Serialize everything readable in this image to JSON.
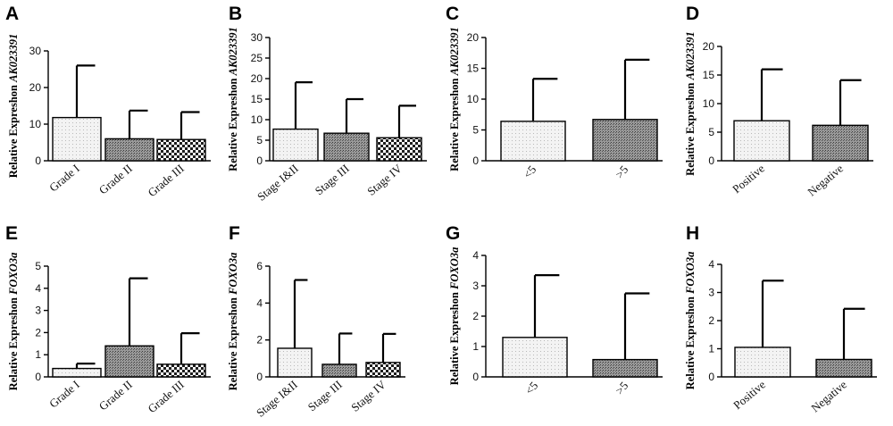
{
  "colors": {
    "axis": "#000000",
    "light_fill": "#f1f1f1",
    "dark_fill": "#8c8c8c",
    "checker_dark": "#222222"
  },
  "chart_data": [
    {
      "panel": "A",
      "type": "bar",
      "ylabel": "Relative Expreshon",
      "ylabel_gene": "AK023391",
      "categories": [
        "Grade I",
        "Grade II",
        "Grade III"
      ],
      "values": [
        11.8,
        6.0,
        5.8
      ],
      "errors": [
        26.0,
        13.7,
        13.3
      ],
      "fills": [
        "light",
        "dark",
        "checker"
      ],
      "yticks": [
        "0",
        "10",
        "20",
        "30"
      ],
      "ylim": [
        0,
        30
      ],
      "label_rotation": -40
    },
    {
      "panel": "B",
      "type": "bar",
      "ylabel": "Relative Expreshon",
      "ylabel_gene": "AK023391",
      "categories": [
        "Stage I&II",
        "Stage III",
        "Stage IV"
      ],
      "values": [
        7.7,
        6.7,
        5.6
      ],
      "errors": [
        19.1,
        15.0,
        13.4
      ],
      "fills": [
        "light",
        "dark",
        "checker"
      ],
      "yticks": [
        "0",
        "5",
        "10",
        "15",
        "20",
        "25",
        "30"
      ],
      "ylim": [
        0,
        30
      ],
      "label_rotation": -40
    },
    {
      "panel": "C",
      "type": "bar",
      "ylabel": "Relative Expreshon",
      "ylabel_gene": "AK023391",
      "categories": [
        "<5",
        ">5"
      ],
      "values": [
        6.4,
        6.7
      ],
      "errors": [
        13.3,
        16.4
      ],
      "fills": [
        "light",
        "dark"
      ],
      "yticks": [
        "0",
        "5",
        "10",
        "15",
        "20"
      ],
      "ylim": [
        0,
        20
      ],
      "label_rotation": -50
    },
    {
      "panel": "D",
      "type": "bar",
      "ylabel": "Relative Expreshon",
      "ylabel_gene": "AK023391",
      "categories": [
        "Positive",
        "Negative"
      ],
      "values": [
        7.0,
        6.2
      ],
      "errors": [
        16.0,
        14.1
      ],
      "fills": [
        "light",
        "dark"
      ],
      "yticks": [
        "0",
        "5",
        "10",
        "15",
        "20"
      ],
      "ylim": [
        0,
        20
      ],
      "label_rotation": -40
    },
    {
      "panel": "E",
      "type": "bar",
      "ylabel": "Relative Expreshon",
      "ylabel_gene": "FOXO3a",
      "categories": [
        "Grade I",
        "Grade II",
        "Grade III"
      ],
      "values": [
        0.38,
        1.4,
        0.57
      ],
      "errors": [
        0.6,
        4.45,
        1.97
      ],
      "fills": [
        "light",
        "dark",
        "checker"
      ],
      "yticks": [
        "0",
        "1",
        "2",
        "3",
        "4",
        "5"
      ],
      "ylim": [
        0,
        5
      ],
      "label_rotation": -40
    },
    {
      "panel": "F",
      "type": "bar",
      "ylabel": "Relative Expreshon",
      "ylabel_gene": "FOXO3a",
      "categories": [
        "Stage I&II",
        "Stage III",
        "Stage IV"
      ],
      "values": [
        1.55,
        0.68,
        0.78
      ],
      "errors": [
        5.25,
        2.35,
        2.33
      ],
      "fills": [
        "light",
        "dark",
        "checker"
      ],
      "yticks": [
        "0",
        "2",
        "4",
        "6"
      ],
      "ylim": [
        0,
        6
      ],
      "label_rotation": -40
    },
    {
      "panel": "G",
      "type": "bar",
      "ylabel": "Relative Expreshon",
      "ylabel_gene": "FOXO3a",
      "categories": [
        "<5",
        ">5"
      ],
      "values": [
        1.3,
        0.57
      ],
      "errors": [
        3.35,
        2.75
      ],
      "fills": [
        "light",
        "dark"
      ],
      "yticks": [
        "0",
        "1",
        "2",
        "3",
        "4"
      ],
      "ylim": [
        0,
        4
      ],
      "label_rotation": -50
    },
    {
      "panel": "H",
      "type": "bar",
      "ylabel": "Relative Expreshon",
      "ylabel_gene": "FOXO3a",
      "categories": [
        "Positive",
        "Negative"
      ],
      "values": [
        1.05,
        0.62
      ],
      "errors": [
        3.42,
        2.42
      ],
      "fills": [
        "light",
        "dark"
      ],
      "yticks": [
        "0",
        "1",
        "2",
        "3",
        "4"
      ],
      "ylim": [
        0,
        4
      ],
      "label_rotation": -40
    }
  ]
}
